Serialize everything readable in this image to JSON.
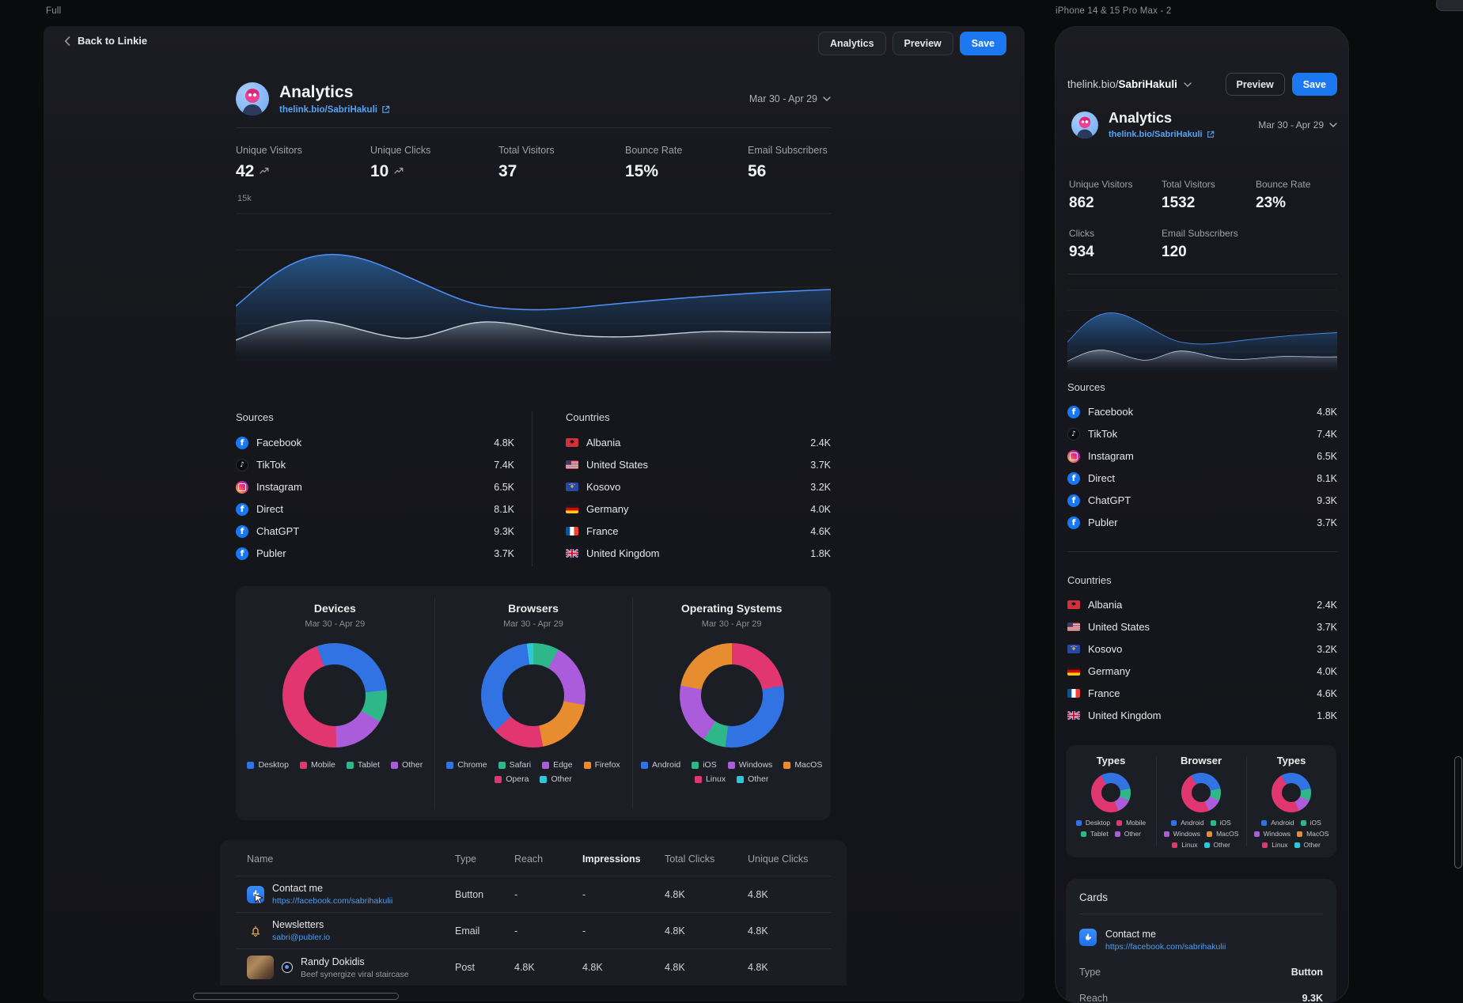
{
  "canvas": {
    "desktop_frame_label": "Full",
    "mobile_frame_label": "iPhone 14 & 15 Pro Max - 2"
  },
  "palette": {
    "blue": "#3273E3",
    "pink": "#E23670",
    "green": "#2EB88A",
    "purple": "#AB5CDB",
    "orange": "#E88C30",
    "teal": "#2FC6D8",
    "accent_blue": "#1B78F0",
    "link_blue": "#53A4F4"
  },
  "shared": {
    "profile_url": "thelink.bio/SabriHakuli",
    "date_range": "Mar 30 - Apr 29",
    "sources": {
      "title": "Sources",
      "items": [
        {
          "name": "Facebook",
          "value": "4.8K",
          "icon": "facebook"
        },
        {
          "name": "TikTok",
          "value": "7.4K",
          "icon": "tiktok"
        },
        {
          "name": "Instagram",
          "value": "6.5K",
          "icon": "instagram"
        },
        {
          "name": "Direct",
          "value": "8.1K",
          "icon": "facebook"
        },
        {
          "name": "ChatGPT",
          "value": "9.3K",
          "icon": "facebook"
        },
        {
          "name": "Publer",
          "value": "3.7K",
          "icon": "facebook"
        }
      ]
    },
    "countries": {
      "title": "Countries",
      "items": [
        {
          "name": "Albania",
          "value": "2.4K",
          "flag": "al"
        },
        {
          "name": "United States",
          "value": "3.7K",
          "flag": "us"
        },
        {
          "name": "Kosovo",
          "value": "3.2K",
          "flag": "xk"
        },
        {
          "name": "Germany",
          "value": "4.0K",
          "flag": "de"
        },
        {
          "name": "France",
          "value": "4.6K",
          "flag": "fr"
        },
        {
          "name": "United Kingdom",
          "value": "1.8K",
          "flag": "gb"
        }
      ]
    },
    "traffic_chart": {
      "type": "area",
      "y_axis_top_label": "15k",
      "series_count": 2,
      "grid": true
    }
  },
  "desktop": {
    "back_label": "Back to Linkie",
    "toolbar": {
      "analytics": "Analytics",
      "preview": "Preview",
      "save": "Save"
    },
    "header": {
      "title": "Analytics"
    },
    "stats": [
      {
        "label": "Unique Visitors",
        "value": "42",
        "trend": true
      },
      {
        "label": "Unique Clicks",
        "value": "10",
        "trend": true
      },
      {
        "label": "Total Visitors",
        "value": "37",
        "trend": false
      },
      {
        "label": "Bounce Rate",
        "value": "15%",
        "trend": false
      },
      {
        "label": "Email Subscribers",
        "value": "56",
        "trend": false
      }
    ],
    "donuts": [
      {
        "title": "Devices",
        "subtitle": "Mar 30 - Apr 29",
        "rotate": -20,
        "segments": [
          {
            "color": "blue",
            "pct": 29
          },
          {
            "color": "green",
            "pct": 10
          },
          {
            "color": "purple",
            "pct": 16
          },
          {
            "color": "pink",
            "pct": 45
          }
        ],
        "legend": [
          {
            "color": "blue",
            "label": "Desktop"
          },
          {
            "color": "pink",
            "label": "Mobile"
          },
          {
            "color": "green",
            "label": "Tablet"
          },
          {
            "color": "purple",
            "label": "Other"
          }
        ]
      },
      {
        "title": "Browsers",
        "subtitle": "Mar 30 - Apr 29",
        "rotate": 0,
        "segments": [
          {
            "color": "green",
            "pct": 8
          },
          {
            "color": "purple",
            "pct": 20
          },
          {
            "color": "orange",
            "pct": 19
          },
          {
            "color": "pink",
            "pct": 16
          },
          {
            "color": "blue",
            "pct": 35
          },
          {
            "color": "teal",
            "pct": 2
          }
        ],
        "legend": [
          {
            "color": "blue",
            "label": "Chrome"
          },
          {
            "color": "green",
            "label": "Safari"
          },
          {
            "color": "purple",
            "label": "Edge"
          },
          {
            "color": "orange",
            "label": "Firefox"
          },
          {
            "color": "pink",
            "label": "Opera"
          },
          {
            "color": "teal",
            "label": "Other"
          }
        ]
      },
      {
        "title": "Operating Systems",
        "subtitle": "Mar 30 - Apr 29",
        "rotate": 0,
        "segments": [
          {
            "color": "pink",
            "pct": 22
          },
          {
            "color": "blue",
            "pct": 30
          },
          {
            "color": "green",
            "pct": 7
          },
          {
            "color": "purple",
            "pct": 19
          },
          {
            "color": "orange",
            "pct": 22
          }
        ],
        "legend": [
          {
            "color": "blue",
            "label": "Android"
          },
          {
            "color": "green",
            "label": "iOS"
          },
          {
            "color": "purple",
            "label": "Windows"
          },
          {
            "color": "orange",
            "label": "MacOS"
          },
          {
            "color": "pink",
            "label": "Linux"
          },
          {
            "color": "teal",
            "label": "Other"
          }
        ]
      }
    ],
    "table": {
      "headers": [
        {
          "label": "Name"
        },
        {
          "label": "Type"
        },
        {
          "label": "Reach"
        },
        {
          "label": "Impressions",
          "emphasis": true
        },
        {
          "label": "Total Clicks"
        },
        {
          "label": "Unique Clicks"
        }
      ],
      "rows": [
        {
          "icon": "pointer",
          "name": "Contact me",
          "sub": "https://facebook.com/sabrihakulii",
          "type": "Button",
          "reach": "-",
          "impressions": "-",
          "total_clicks": "4.8K",
          "unique_clicks": "4.8K",
          "has_cursor": true
        },
        {
          "icon": "bell",
          "name": "Newsletters",
          "sub": "sabri@publer.io",
          "type": "Email",
          "reach": "-",
          "impressions": "-",
          "total_clicks": "4.8K",
          "unique_clicks": "4.8K",
          "has_cursor": false
        },
        {
          "icon": "photo",
          "name": "Randy Dokidis",
          "sub": "Beef synergize viral staircase",
          "type": "Post",
          "reach": "4.8K",
          "impressions": "4.8K",
          "total_clicks": "4.8K",
          "unique_clicks": "4.8K",
          "has_cursor": false
        }
      ]
    }
  },
  "mobile": {
    "toolbar": {
      "preview": "Preview",
      "save": "Save"
    },
    "header": {
      "title": "Analytics"
    },
    "stats": [
      {
        "label": "Unique Visitors",
        "value": "862"
      },
      {
        "label": "Total Visitors",
        "value": "1532"
      },
      {
        "label": "Bounce Rate",
        "value": "23%"
      },
      {
        "label": "Clicks",
        "value": "934"
      },
      {
        "label": "Email Subscribers",
        "value": "120"
      }
    ],
    "donuts": [
      {
        "title": "Types",
        "rotate": -30,
        "segments": [
          {
            "color": "blue",
            "pct": 30
          },
          {
            "color": "green",
            "pct": 10
          },
          {
            "color": "purple",
            "pct": 12
          },
          {
            "color": "pink",
            "pct": 48
          }
        ],
        "legend": [
          {
            "color": "blue",
            "label": "Desktop"
          },
          {
            "color": "pink",
            "label": "Mobile"
          },
          {
            "color": "green",
            "label": "Tablet"
          },
          {
            "color": "purple",
            "label": "Other"
          }
        ]
      },
      {
        "title": "Browser",
        "rotate": -30,
        "segments": [
          {
            "color": "blue",
            "pct": 30
          },
          {
            "color": "green",
            "pct": 10
          },
          {
            "color": "purple",
            "pct": 12
          },
          {
            "color": "pink",
            "pct": 48
          }
        ],
        "legend": [
          {
            "color": "blue",
            "label": "Android"
          },
          {
            "color": "green",
            "label": "iOS"
          },
          {
            "color": "purple",
            "label": "Windows"
          },
          {
            "color": "orange",
            "label": "MacOS"
          },
          {
            "color": "pink",
            "label": "Linux"
          },
          {
            "color": "teal",
            "label": "Other"
          }
        ]
      },
      {
        "title": "Types",
        "rotate": -30,
        "segments": [
          {
            "color": "blue",
            "pct": 30
          },
          {
            "color": "green",
            "pct": 10
          },
          {
            "color": "purple",
            "pct": 12
          },
          {
            "color": "pink",
            "pct": 48
          }
        ],
        "legend": [
          {
            "color": "blue",
            "label": "Android"
          },
          {
            "color": "green",
            "label": "iOS"
          },
          {
            "color": "purple",
            "label": "Windows"
          },
          {
            "color": "orange",
            "label": "MacOS"
          },
          {
            "color": "pink",
            "label": "Linux"
          },
          {
            "color": "teal",
            "label": "Other"
          }
        ]
      }
    ],
    "cards": {
      "title": "Cards",
      "items": [
        {
          "icon": "pointer",
          "name": "Contact me",
          "sub": "https://facebook.com/sabrihakulii",
          "fields": [
            {
              "k": "Type",
              "v": "Button"
            },
            {
              "k": "Reach",
              "v": "9.3K"
            }
          ]
        }
      ]
    }
  }
}
